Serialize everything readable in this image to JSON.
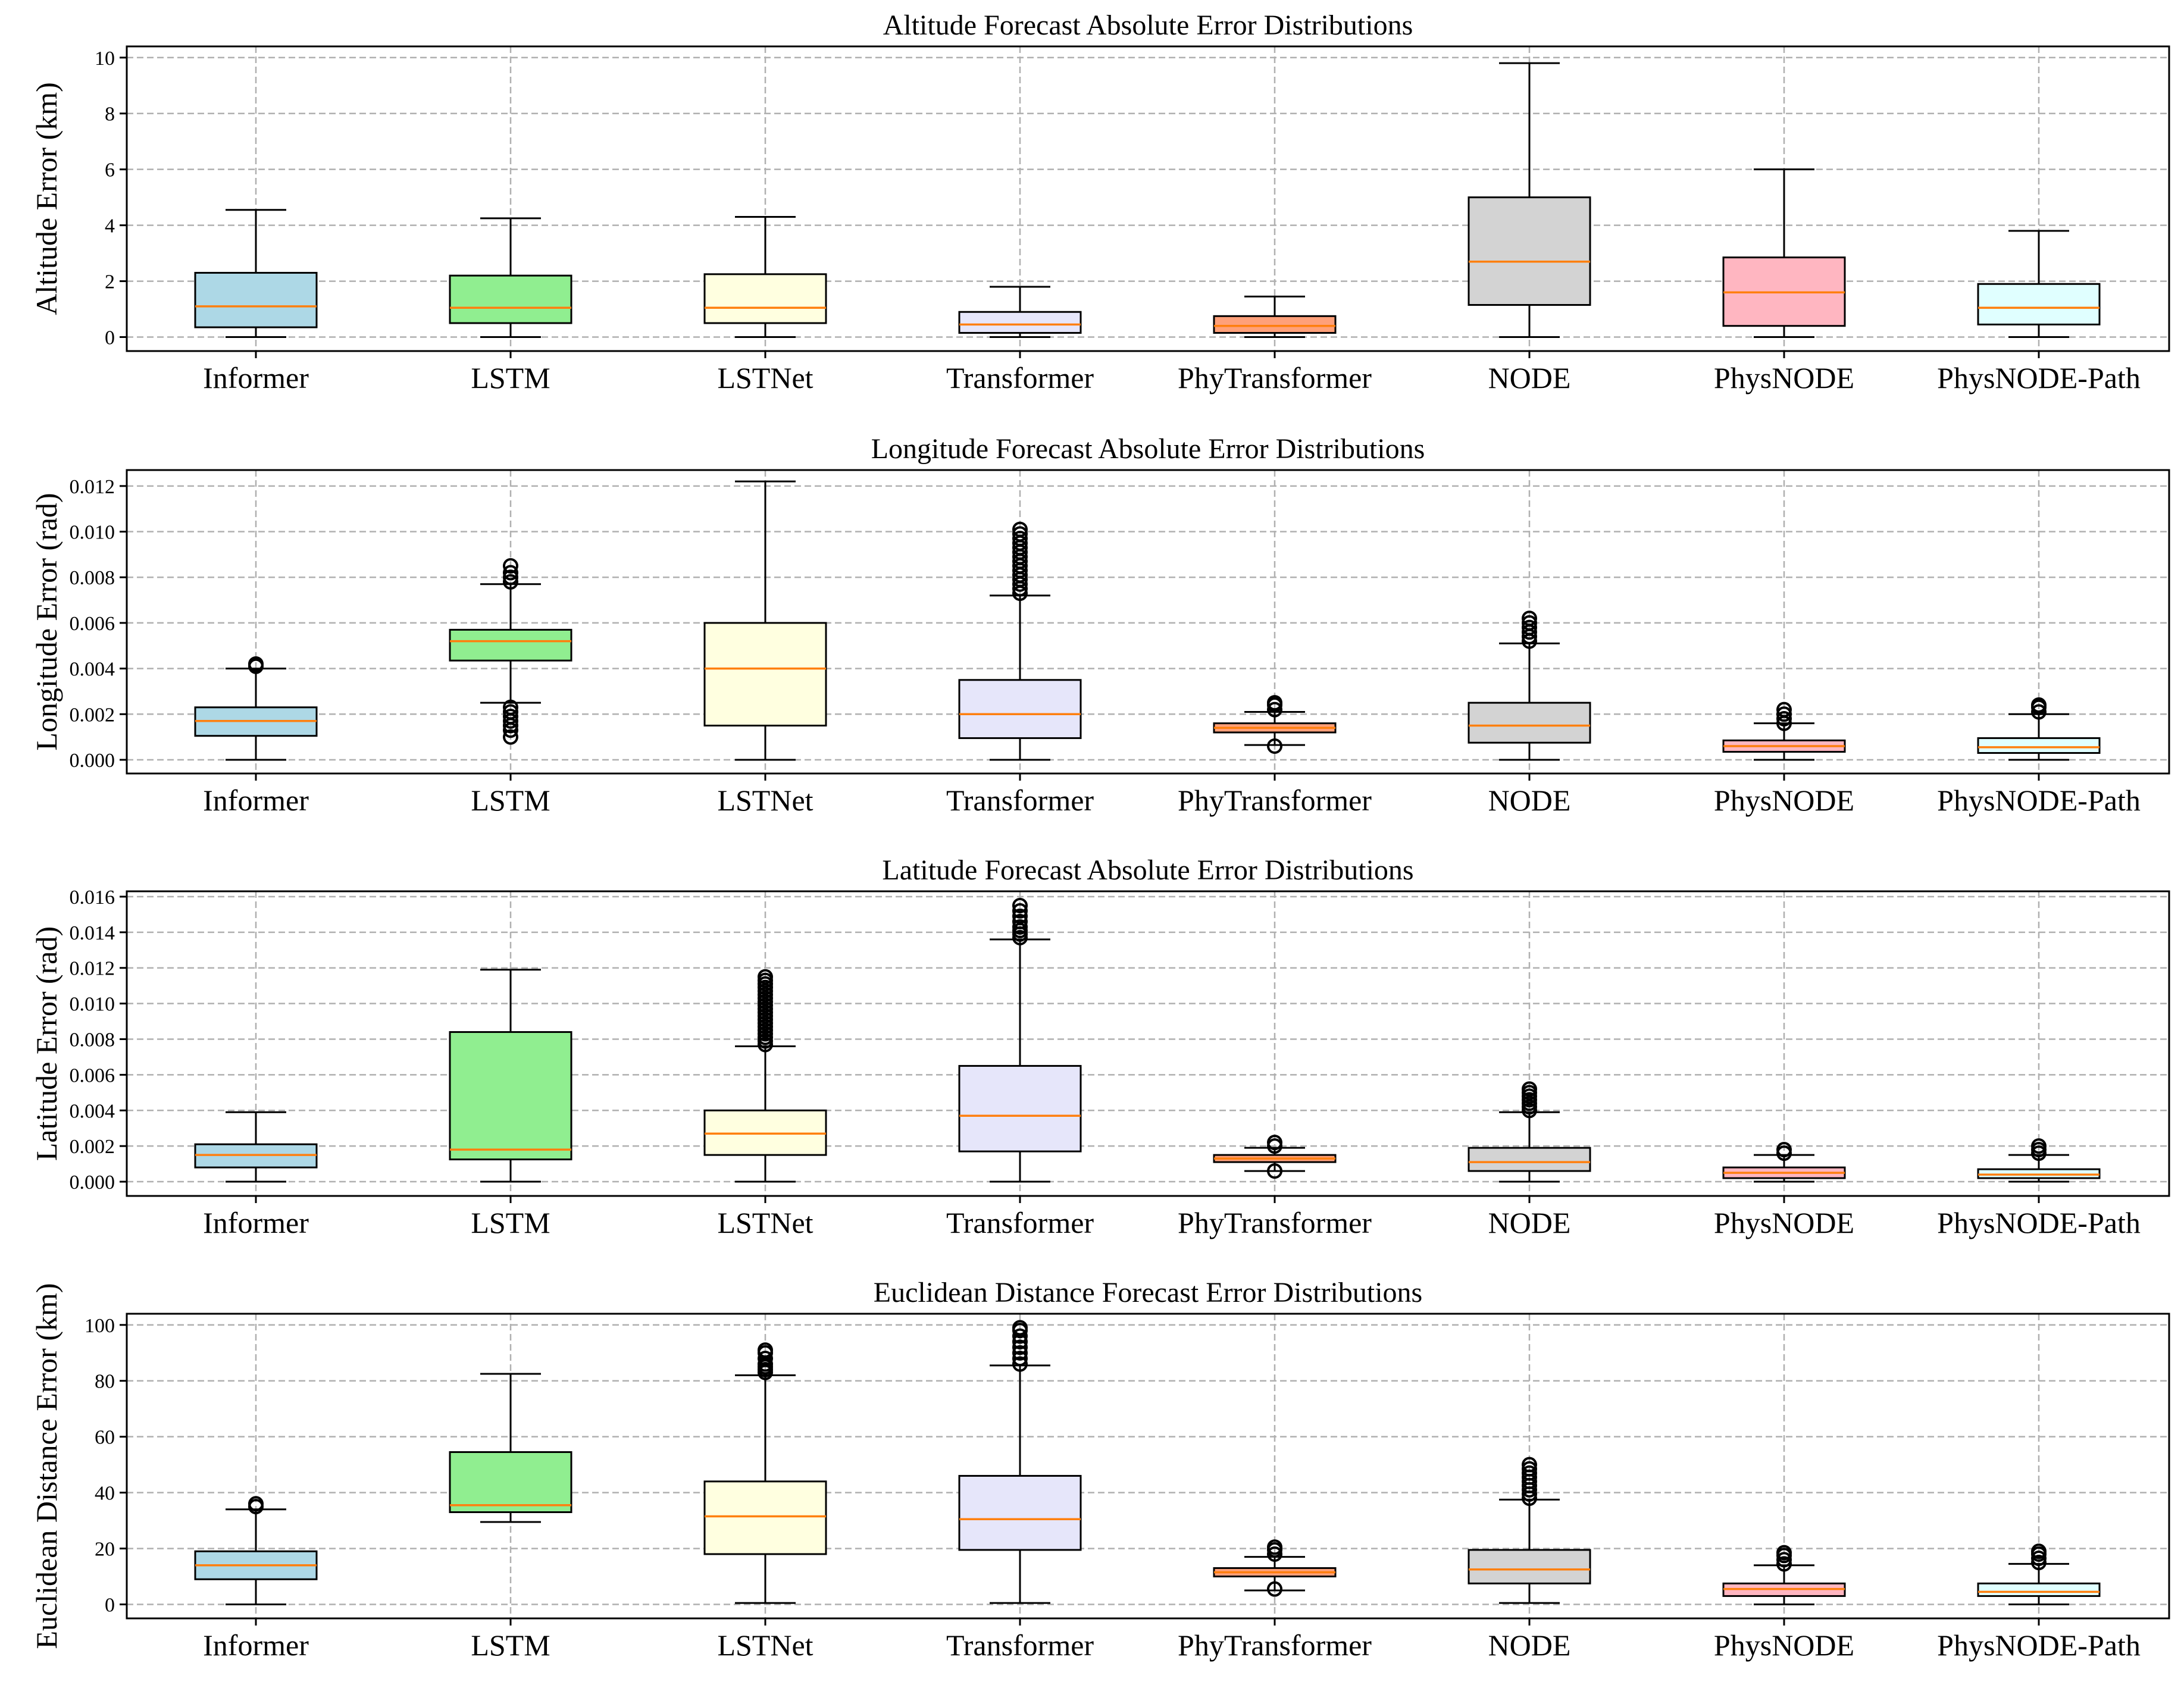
{
  "page": {
    "background": "#ffffff"
  },
  "colors": {
    "median": "#ff7f0e",
    "grid": "#b0b0b0",
    "box_fills": [
      "#add8e6",
      "#90ee90",
      "#ffffe0",
      "#e6e6fa",
      "#ffa07a",
      "#d3d3d3",
      "#ffb6c1",
      "#e0ffff"
    ]
  },
  "chart_data": [
    {
      "type": "box",
      "title": "Altitude Forecast Absolute Error Distributions",
      "xlabel": "",
      "ylabel": "Altitude Error (km)",
      "ylim": [
        -0.5,
        10.4
      ],
      "yticks": [
        0,
        2,
        4,
        6,
        8,
        10
      ],
      "ytick_labels": [
        "0",
        "2",
        "4",
        "6",
        "8",
        "10"
      ],
      "grid": true,
      "categories": [
        "Informer",
        "LSTM",
        "LSTNet",
        "Transformer",
        "PhyTransformer",
        "NODE",
        "PhysNODE",
        "PhysNODE-Path"
      ],
      "boxes": [
        {
          "whislo": 0.0,
          "q1": 0.35,
          "med": 1.1,
          "q3": 2.3,
          "whishi": 4.55,
          "fliers": []
        },
        {
          "whislo": 0.0,
          "q1": 0.5,
          "med": 1.05,
          "q3": 2.2,
          "whishi": 4.25,
          "fliers": []
        },
        {
          "whislo": 0.0,
          "q1": 0.5,
          "med": 1.05,
          "q3": 2.25,
          "whishi": 4.3,
          "fliers": []
        },
        {
          "whislo": 0.0,
          "q1": 0.15,
          "med": 0.45,
          "q3": 0.9,
          "whishi": 1.8,
          "fliers": []
        },
        {
          "whislo": 0.0,
          "q1": 0.15,
          "med": 0.4,
          "q3": 0.75,
          "whishi": 1.45,
          "fliers": []
        },
        {
          "whislo": 0.0,
          "q1": 1.15,
          "med": 2.7,
          "q3": 5.0,
          "whishi": 9.8,
          "fliers": []
        },
        {
          "whislo": 0.0,
          "q1": 0.4,
          "med": 1.6,
          "q3": 2.85,
          "whishi": 6.0,
          "fliers": []
        },
        {
          "whislo": 0.0,
          "q1": 0.45,
          "med": 1.05,
          "q3": 1.9,
          "whishi": 3.8,
          "fliers": []
        }
      ]
    },
    {
      "type": "box",
      "title": "Longitude Forecast Absolute Error Distributions",
      "xlabel": "",
      "ylabel": "Longitude Error (rad)",
      "ylim": [
        -0.0006,
        0.0127
      ],
      "yticks": [
        0,
        0.002,
        0.004,
        0.006,
        0.008,
        0.01,
        0.012
      ],
      "ytick_labels": [
        "0.000",
        "0.002",
        "0.004",
        "0.006",
        "0.008",
        "0.010",
        "0.012"
      ],
      "grid": true,
      "categories": [
        "Informer",
        "LSTM",
        "LSTNet",
        "Transformer",
        "PhyTransformer",
        "NODE",
        "PhysNODE",
        "PhysNODE-Path"
      ],
      "boxes": [
        {
          "whislo": 0.0,
          "q1": 0.00105,
          "med": 0.0017,
          "q3": 0.0023,
          "whishi": 0.004,
          "fliers": [
            0.0041,
            0.0042
          ]
        },
        {
          "whislo": 0.0025,
          "q1": 0.00435,
          "med": 0.0052,
          "q3": 0.0057,
          "whishi": 0.0077,
          "fliers": [
            0.001,
            0.0013,
            0.0015,
            0.0017,
            0.0019,
            0.0021,
            0.0023,
            0.0078,
            0.008,
            0.0082,
            0.0085
          ]
        },
        {
          "whislo": 0.0,
          "q1": 0.0015,
          "med": 0.004,
          "q3": 0.006,
          "whishi": 0.0122,
          "fliers": []
        },
        {
          "whislo": 0.0,
          "q1": 0.00095,
          "med": 0.002,
          "q3": 0.0035,
          "whishi": 0.0072,
          "fliers": [
            0.0073,
            0.0075,
            0.0077,
            0.0079,
            0.0081,
            0.0083,
            0.0085,
            0.0087,
            0.0089,
            0.0091,
            0.0093,
            0.0095,
            0.0097,
            0.0099,
            0.0101
          ]
        },
        {
          "whislo": 0.00065,
          "q1": 0.0012,
          "med": 0.0014,
          "q3": 0.0016,
          "whishi": 0.0021,
          "fliers": [
            0.0006,
            0.0022,
            0.0024,
            0.0025
          ]
        },
        {
          "whislo": 0.0,
          "q1": 0.00075,
          "med": 0.0015,
          "q3": 0.0025,
          "whishi": 0.0051,
          "fliers": [
            0.0052,
            0.0054,
            0.0056,
            0.0058,
            0.006,
            0.0062
          ]
        },
        {
          "whislo": 0.0,
          "q1": 0.00035,
          "med": 0.0006,
          "q3": 0.00085,
          "whishi": 0.0016,
          "fliers": [
            0.0016,
            0.0018,
            0.002,
            0.0022
          ]
        },
        {
          "whislo": 0.0,
          "q1": 0.0003,
          "med": 0.00055,
          "q3": 0.00095,
          "whishi": 0.002,
          "fliers": [
            0.0021,
            0.0023,
            0.0024
          ]
        }
      ]
    },
    {
      "type": "box",
      "title": "Latitude Forecast Absolute Error Distributions",
      "xlabel": "",
      "ylabel": "Latitude Error (rad)",
      "ylim": [
        -0.0008,
        0.0163
      ],
      "yticks": [
        0,
        0.002,
        0.004,
        0.006,
        0.008,
        0.01,
        0.012,
        0.014,
        0.016
      ],
      "ytick_labels": [
        "0.000",
        "0.002",
        "0.004",
        "0.006",
        "0.008",
        "0.010",
        "0.012",
        "0.014",
        "0.016"
      ],
      "grid": true,
      "categories": [
        "Informer",
        "LSTM",
        "LSTNet",
        "Transformer",
        "PhyTransformer",
        "NODE",
        "PhysNODE",
        "PhysNODE-Path"
      ],
      "boxes": [
        {
          "whislo": 0.0,
          "q1": 0.0008,
          "med": 0.0015,
          "q3": 0.0021,
          "whishi": 0.0039,
          "fliers": []
        },
        {
          "whislo": 0.0,
          "q1": 0.00125,
          "med": 0.0018,
          "q3": 0.0084,
          "whishi": 0.0119,
          "fliers": []
        },
        {
          "whislo": 0.0,
          "q1": 0.0015,
          "med": 0.0027,
          "q3": 0.004,
          "whishi": 0.0076,
          "fliers": [
            0.0077,
            0.0079,
            0.0081,
            0.0083,
            0.0085,
            0.0087,
            0.0089,
            0.0091,
            0.0093,
            0.0095,
            0.0097,
            0.0099,
            0.0101,
            0.0103,
            0.0105,
            0.0107,
            0.0109,
            0.0111,
            0.0113,
            0.0115
          ]
        },
        {
          "whislo": 0.0,
          "q1": 0.0017,
          "med": 0.0037,
          "q3": 0.0065,
          "whishi": 0.0136,
          "fliers": [
            0.0137,
            0.0139,
            0.0141,
            0.0143,
            0.0146,
            0.0149,
            0.0152,
            0.0155
          ]
        },
        {
          "whislo": 0.0006,
          "q1": 0.0011,
          "med": 0.0013,
          "q3": 0.0015,
          "whishi": 0.0019,
          "fliers": [
            0.0006,
            0.002,
            0.0022
          ]
        },
        {
          "whislo": 0.0,
          "q1": 0.0006,
          "med": 0.0011,
          "q3": 0.0019,
          "whishi": 0.0039,
          "fliers": [
            0.004,
            0.0042,
            0.0044,
            0.0046,
            0.0048,
            0.005,
            0.0052
          ]
        },
        {
          "whislo": 0.0,
          "q1": 0.0002,
          "med": 0.0005,
          "q3": 0.0008,
          "whishi": 0.0015,
          "fliers": [
            0.0016,
            0.0018
          ]
        },
        {
          "whislo": 0.0,
          "q1": 0.0002,
          "med": 0.0004,
          "q3": 0.0007,
          "whishi": 0.0015,
          "fliers": [
            0.0016,
            0.0018,
            0.002
          ]
        }
      ]
    },
    {
      "type": "box",
      "title": "Euclidean Distance Forecast Error Distributions",
      "xlabel": "",
      "ylabel": "Euclidean Distance Error (km)",
      "ylim": [
        -5,
        104
      ],
      "yticks": [
        0,
        20,
        40,
        60,
        80,
        100
      ],
      "ytick_labels": [
        "0",
        "20",
        "40",
        "60",
        "80",
        "100"
      ],
      "grid": true,
      "categories": [
        "Informer",
        "LSTM",
        "LSTNet",
        "Transformer",
        "PhyTransformer",
        "NODE",
        "PhysNODE",
        "PhysNODE-Path"
      ],
      "boxes": [
        {
          "whislo": 0.0,
          "q1": 9.0,
          "med": 14.0,
          "q3": 19.0,
          "whishi": 34.0,
          "fliers": [
            35.0,
            36.0
          ]
        },
        {
          "whislo": 29.5,
          "q1": 33.0,
          "med": 35.5,
          "q3": 54.5,
          "whishi": 82.5,
          "fliers": []
        },
        {
          "whislo": 0.5,
          "q1": 18.0,
          "med": 31.5,
          "q3": 44.0,
          "whishi": 82.0,
          "fliers": [
            83.0,
            84.0,
            85.0,
            86.0,
            88.0,
            90.0,
            91.0
          ]
        },
        {
          "whislo": 0.5,
          "q1": 19.5,
          "med": 30.5,
          "q3": 46.0,
          "whishi": 85.5,
          "fliers": [
            86.0,
            88.0,
            90.0,
            92.0,
            94.0,
            96.0,
            98.0,
            99.0
          ]
        },
        {
          "whislo": 5.0,
          "q1": 10.0,
          "med": 11.5,
          "q3": 13.0,
          "whishi": 17.0,
          "fliers": [
            5.5,
            18.0,
            19.5,
            20.5
          ]
        },
        {
          "whislo": 0.5,
          "q1": 7.5,
          "med": 12.5,
          "q3": 19.5,
          "whishi": 37.5,
          "fliers": [
            38.0,
            39.5,
            41.0,
            42.5,
            44.0,
            45.5,
            47.0,
            48.5,
            50.0
          ]
        },
        {
          "whislo": 0.0,
          "q1": 3.0,
          "med": 5.5,
          "q3": 7.5,
          "whishi": 14.0,
          "fliers": [
            14.5,
            16.0,
            17.5,
            18.5
          ]
        },
        {
          "whislo": 0.0,
          "q1": 3.0,
          "med": 4.5,
          "q3": 7.5,
          "whishi": 14.5,
          "fliers": [
            15.0,
            16.5,
            18.0,
            19.0
          ]
        }
      ]
    }
  ]
}
